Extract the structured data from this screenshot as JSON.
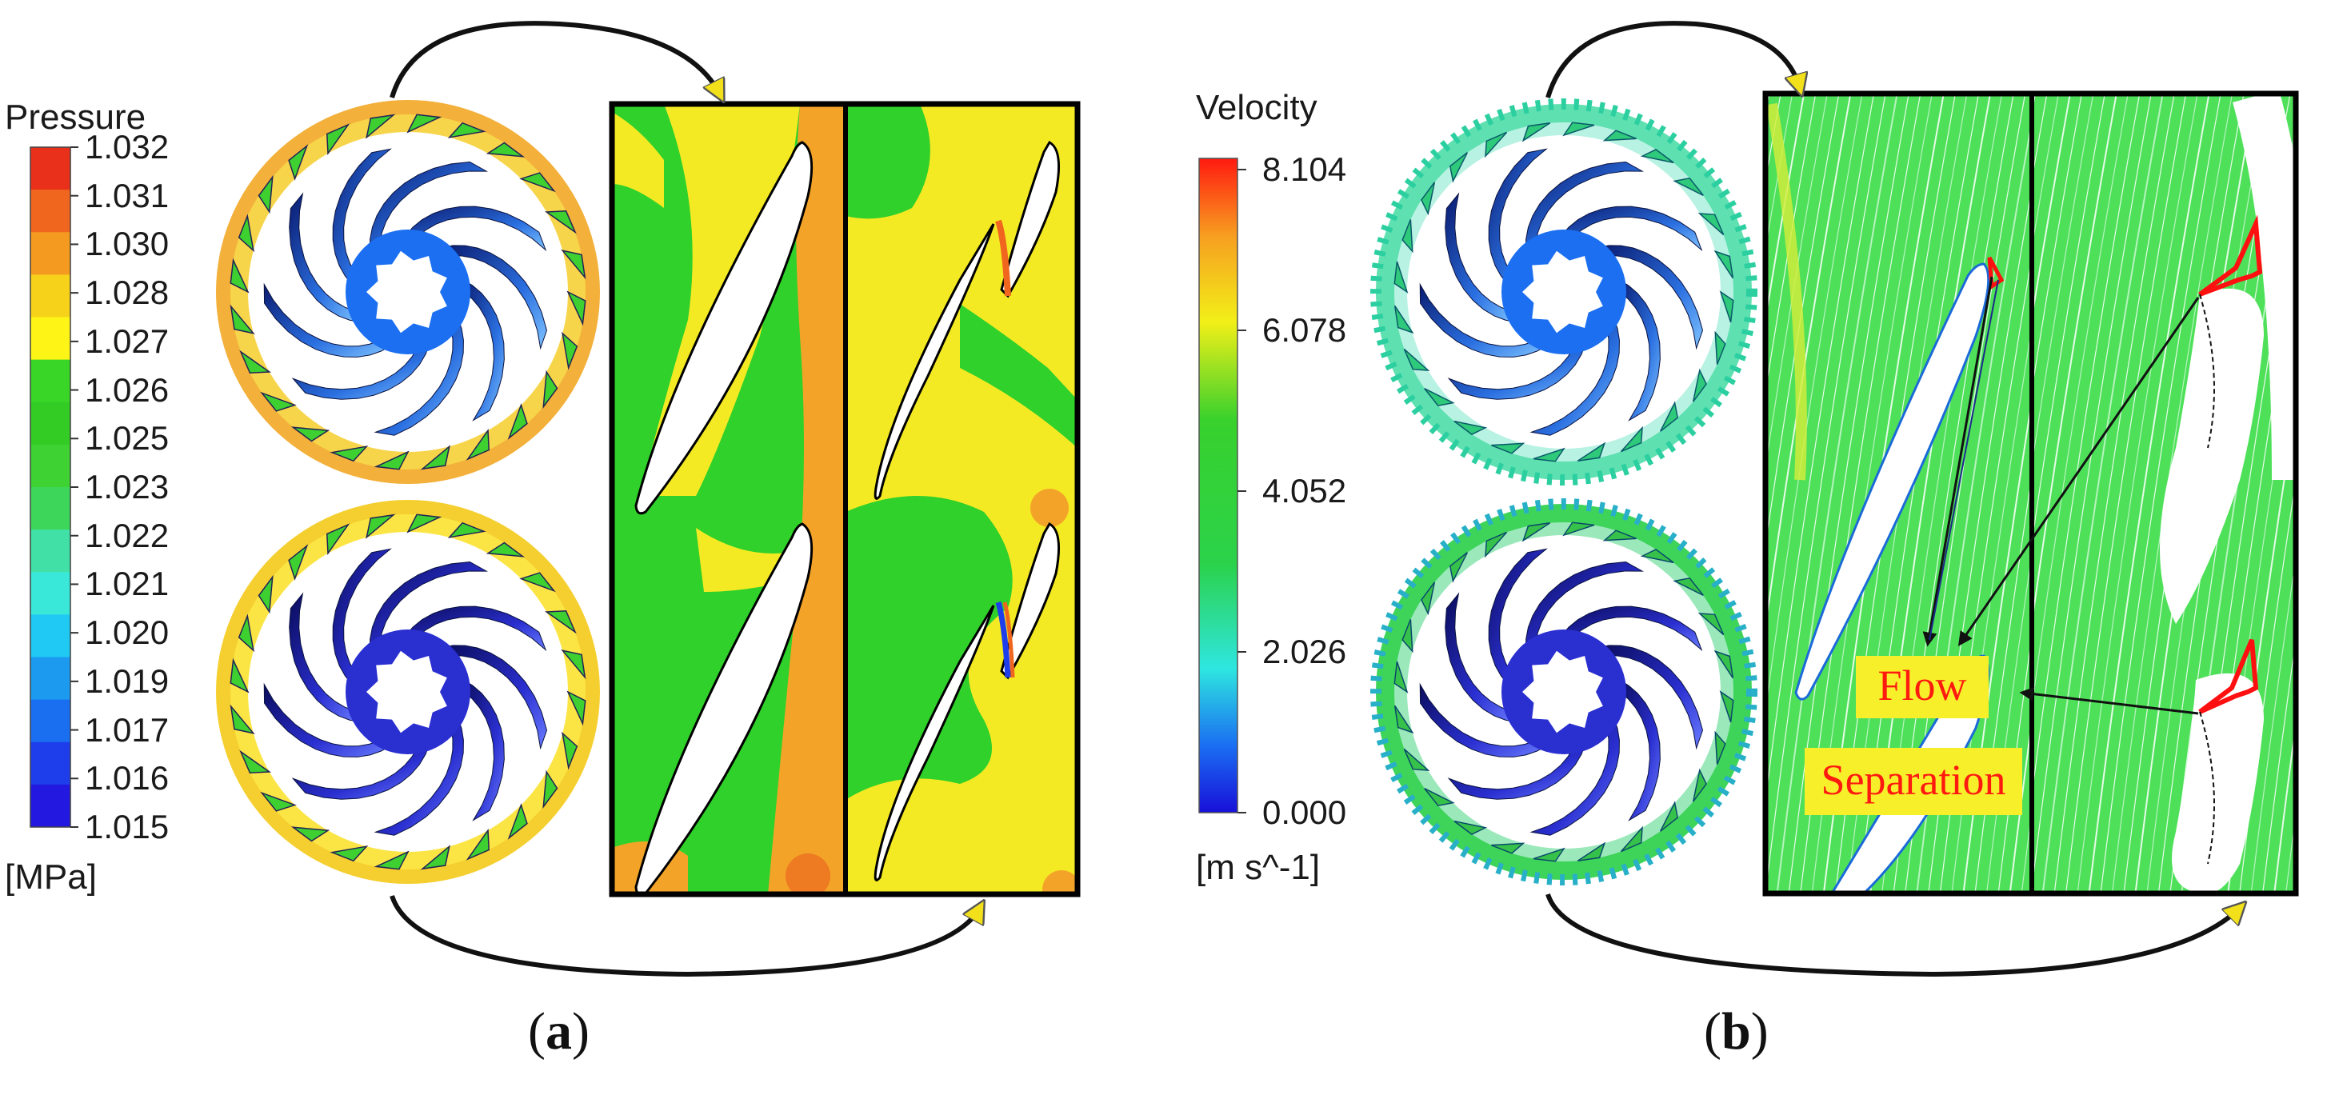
{
  "panel_a": {
    "legend_title": "Pressure",
    "legend_unit": "[MPa]",
    "ticks": [
      "1.032",
      "1.031",
      "1.030",
      "1.028",
      "1.027",
      "1.026",
      "1.025",
      "1.023",
      "1.022",
      "1.021",
      "1.020",
      "1.019",
      "1.017",
      "1.016",
      "1.015"
    ],
    "colors": [
      "#e8301a",
      "#f0661f",
      "#f49a20",
      "#f7d21a",
      "#fef516",
      "#39d628",
      "#32cc25",
      "#3ed233",
      "#3ed65a",
      "#40e0a6",
      "#39e8d9",
      "#1fc9f4",
      "#1b9af0",
      "#1a6ef0",
      "#1d3eea",
      "#2218e0"
    ],
    "caption": "a"
  },
  "panel_b": {
    "legend_title": "Velocity",
    "legend_unit": "[m s^-1]",
    "ticks": [
      "8.104",
      "6.078",
      "4.052",
      "2.026",
      "0.000"
    ],
    "annotation_line1": "Flow",
    "annotation_line2": "Separation",
    "caption": "b"
  }
}
